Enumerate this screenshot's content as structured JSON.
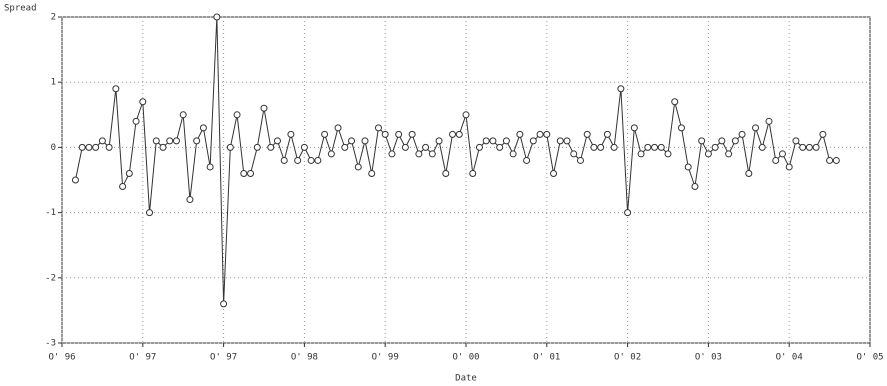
{
  "chart_data": {
    "type": "line",
    "y_label": "Spread",
    "x_label": "Date",
    "x": [
      0,
      1,
      2,
      3,
      4,
      5,
      6,
      7,
      8,
      9,
      10,
      11,
      12,
      13,
      14,
      15,
      16,
      17,
      18,
      19,
      20,
      21,
      22,
      23,
      24,
      25,
      26,
      27,
      28,
      29,
      30,
      31,
      32,
      33,
      34,
      35,
      36,
      37,
      38,
      39,
      40,
      41,
      42,
      43,
      44,
      45,
      46,
      47,
      48,
      49,
      50,
      51,
      52,
      53,
      54,
      55,
      56,
      57,
      58,
      59,
      60,
      61,
      62,
      63,
      64,
      65,
      66,
      67,
      68,
      69,
      70,
      71,
      72,
      73,
      74,
      75,
      76,
      77,
      78,
      79,
      80,
      81,
      82,
      83,
      84,
      85,
      86,
      87,
      88,
      89,
      90,
      91,
      92,
      93,
      94,
      95,
      96,
      97,
      98,
      99,
      100,
      101,
      102,
      103,
      104,
      105,
      106,
      107,
      108,
      109,
      110,
      111,
      112,
      113
    ],
    "series": [
      {
        "color": "#333333",
        "values": [
          -0.5,
          0,
          0,
          0,
          0.1,
          0,
          0.9,
          -0.6,
          -0.4,
          0.4,
          0.7,
          -1,
          0.1,
          0,
          0.1,
          0.1,
          0.5,
          -0.8,
          0.1,
          0.3,
          -0.3,
          2,
          -2.4,
          0,
          0.5,
          -0.4,
          -0.4,
          0,
          0.6,
          0,
          0.1,
          -0.2,
          0.2,
          -0.2,
          0,
          -0.2,
          -0.2,
          0.2,
          -0.1,
          0.3,
          0,
          0.1,
          -0.3,
          0.1,
          -0.4,
          0.3,
          0.2,
          -0.1,
          0.2,
          0,
          0.2,
          -0.1,
          0,
          -0.1,
          0.1,
          -0.4,
          0.2,
          0.2,
          0.5,
          -0.4,
          0,
          0.1,
          0.1,
          0,
          0.1,
          -0.1,
          0.2,
          -0.2,
          0.1,
          0.2,
          0.2,
          -0.4,
          0.1,
          0.1,
          -0.1,
          -0.2,
          0.2,
          0,
          0,
          0.2,
          0,
          0.9,
          -1,
          0.3,
          -0.1,
          0,
          0,
          0,
          -0.1,
          0.7,
          0.3,
          -0.3,
          -0.6,
          0.1,
          -0.1,
          0,
          0.1,
          -0.1,
          0.1,
          0.2,
          -0.4,
          0.3,
          0,
          0.4,
          -0.2,
          -0.1,
          -0.3,
          0.1,
          0,
          0,
          0,
          0.2,
          -0.2,
          -0.2
        ]
      }
    ],
    "xlim": [
      -2,
      118
    ],
    "xticks": [
      {
        "value": -2,
        "label": "O' 96"
      },
      {
        "value": 10,
        "label": "O' 97"
      },
      {
        "value": 22,
        "label": "O' 97"
      },
      {
        "value": 34,
        "label": "O' 98"
      },
      {
        "value": 46,
        "label": "O' 99"
      },
      {
        "value": 58,
        "label": "O' 00"
      },
      {
        "value": 70,
        "label": "O' 01"
      },
      {
        "value": 82,
        "label": "O' 02"
      },
      {
        "value": 94,
        "label": "O' 03"
      },
      {
        "value": 106,
        "label": "O' 04"
      },
      {
        "value": 118,
        "label": "O' 05"
      }
    ],
    "ylim": [
      -3,
      2
    ],
    "yticks": [
      -3,
      -2,
      -1,
      0,
      1,
      2
    ],
    "grid": true
  }
}
